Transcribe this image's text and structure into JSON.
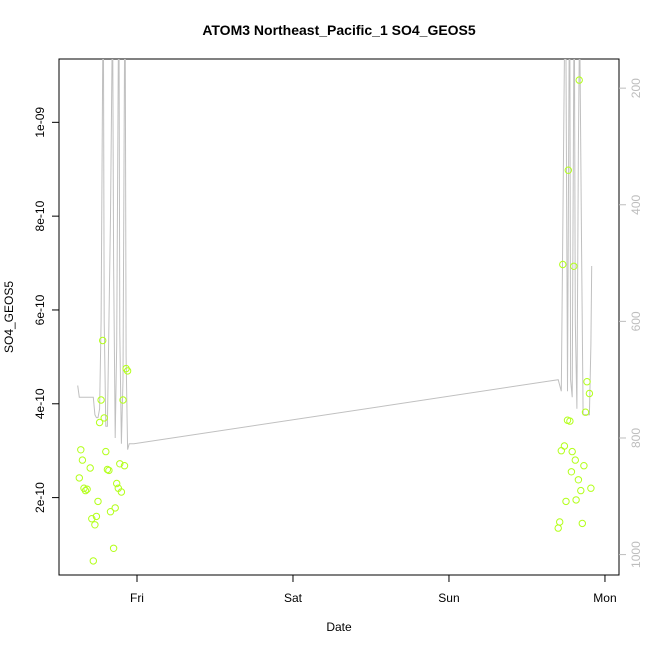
{
  "chart_data": {
    "type": "scatter",
    "title": "ATOM3 Northeast_Pacific_1 SO4_GEOS5",
    "xlabel": "Date",
    "ylabel": "SO4_GEOS5",
    "x_ticks": [
      {
        "label": "Fri",
        "value": 0
      },
      {
        "label": "Sat",
        "value": 1
      },
      {
        "label": "Sun",
        "value": 2
      },
      {
        "label": "Mon",
        "value": 3
      }
    ],
    "xlim": [
      -0.5,
      3.09
    ],
    "ylim": [
      3.5e-11,
      1.135e-09
    ],
    "y_ticks": [
      {
        "label": "2e-10",
        "value": 2e-10
      },
      {
        "label": "4e-10",
        "value": 4e-10
      },
      {
        "label": "6e-10",
        "value": 6e-10
      },
      {
        "label": "8e-10",
        "value": 8e-10
      },
      {
        "label": "1e-09",
        "value": 1e-09
      }
    ],
    "y2lim": [
      1035,
      150
    ],
    "y2_ticks": [
      {
        "label": "200",
        "value": 200
      },
      {
        "label": "400",
        "value": 400
      },
      {
        "label": "600",
        "value": 600
      },
      {
        "label": "800",
        "value": 800
      },
      {
        "label": "1000",
        "value": 1000
      }
    ],
    "colors": {
      "points": "#b3ff1a",
      "pressure_line": "#c0c0c0",
      "axis": "#000000",
      "right_axis": "#bdbdbd"
    },
    "series": [
      {
        "values": [
          {
            "x": -0.37,
            "y": 2.42e-10
          },
          {
            "x": -0.36,
            "y": 3.02e-10
          },
          {
            "x": -0.35,
            "y": 2.8e-10
          },
          {
            "x": -0.34,
            "y": 2.2e-10
          },
          {
            "x": -0.33,
            "y": 2.15e-10
          },
          {
            "x": -0.32,
            "y": 2.18e-10
          },
          {
            "x": -0.3,
            "y": 2.63e-10
          },
          {
            "x": -0.29,
            "y": 1.55e-10
          },
          {
            "x": -0.28,
            "y": 6.5e-11
          },
          {
            "x": -0.27,
            "y": 1.42e-10
          },
          {
            "x": -0.26,
            "y": 1.6e-10
          },
          {
            "x": -0.25,
            "y": 1.92e-10
          },
          {
            "x": -0.24,
            "y": 3.6e-10
          },
          {
            "x": -0.23,
            "y": 4.08e-10
          },
          {
            "x": -0.22,
            "y": 5.35e-10
          },
          {
            "x": -0.21,
            "y": 3.7e-10
          },
          {
            "x": -0.2,
            "y": 2.98e-10
          },
          {
            "x": -0.19,
            "y": 2.6e-10
          },
          {
            "x": -0.18,
            "y": 2.58e-10
          },
          {
            "x": -0.17,
            "y": 1.7e-10
          },
          {
            "x": -0.15,
            "y": 9.2e-11
          },
          {
            "x": -0.14,
            "y": 1.78e-10
          },
          {
            "x": -0.13,
            "y": 2.3e-10
          },
          {
            "x": -0.12,
            "y": 2.2e-10
          },
          {
            "x": -0.11,
            "y": 2.72e-10
          },
          {
            "x": -0.1,
            "y": 2.12e-10
          },
          {
            "x": -0.09,
            "y": 4.08e-10
          },
          {
            "x": -0.08,
            "y": 2.68e-10
          },
          {
            "x": -0.07,
            "y": 4.75e-10
          },
          {
            "x": -0.06,
            "y": 4.7e-10
          },
          {
            "x": 2.7,
            "y": 1.35e-10
          },
          {
            "x": 2.71,
            "y": 1.48e-10
          },
          {
            "x": 2.72,
            "y": 3e-10
          },
          {
            "x": 2.73,
            "y": 6.97e-10
          },
          {
            "x": 2.74,
            "y": 3.1e-10
          },
          {
            "x": 2.75,
            "y": 1.92e-10
          },
          {
            "x": 2.76,
            "y": 3.65e-10
          },
          {
            "x": 2.765,
            "y": 8.98e-10
          },
          {
            "x": 2.775,
            "y": 3.63e-10
          },
          {
            "x": 2.785,
            "y": 2.55e-10
          },
          {
            "x": 2.79,
            "y": 2.98e-10
          },
          {
            "x": 2.8,
            "y": 6.93e-10
          },
          {
            "x": 2.81,
            "y": 2.8e-10
          },
          {
            "x": 2.815,
            "y": 1.95e-10
          },
          {
            "x": 2.83,
            "y": 2.38e-10
          },
          {
            "x": 2.835,
            "y": 1.09e-09
          },
          {
            "x": 2.845,
            "y": 2.15e-10
          },
          {
            "x": 2.855,
            "y": 1.45e-10
          },
          {
            "x": 2.865,
            "y": 2.68e-10
          },
          {
            "x": 2.875,
            "y": 3.82e-10
          },
          {
            "x": 2.885,
            "y": 4.47e-10
          },
          {
            "x": 2.9,
            "y": 4.22e-10
          },
          {
            "x": 2.91,
            "y": 2.2e-10
          }
        ]
      },
      {
        "axis": "right",
        "values": [
          {
            "x": -0.38,
            "y": 710
          },
          {
            "x": -0.37,
            "y": 730
          },
          {
            "x": -0.32,
            "y": 730
          },
          {
            "x": -0.28,
            "y": 730
          },
          {
            "x": -0.27,
            "y": 760
          },
          {
            "x": -0.26,
            "y": 765
          },
          {
            "x": -0.25,
            "y": 765
          },
          {
            "x": -0.24,
            "y": 750
          },
          {
            "x": -0.23,
            "y": 600
          },
          {
            "x": -0.22,
            "y": 150
          },
          {
            "x": -0.215,
            "y": 150
          },
          {
            "x": -0.21,
            "y": 600
          },
          {
            "x": -0.2,
            "y": 780
          },
          {
            "x": -0.19,
            "y": 780
          },
          {
            "x": -0.17,
            "y": 420
          },
          {
            "x": -0.16,
            "y": 150
          },
          {
            "x": -0.155,
            "y": 150
          },
          {
            "x": -0.15,
            "y": 500
          },
          {
            "x": -0.14,
            "y": 800
          },
          {
            "x": -0.13,
            "y": 640
          },
          {
            "x": -0.12,
            "y": 150
          },
          {
            "x": -0.115,
            "y": 150
          },
          {
            "x": -0.11,
            "y": 620
          },
          {
            "x": -0.1,
            "y": 810
          },
          {
            "x": -0.09,
            "y": 700
          },
          {
            "x": -0.08,
            "y": 150
          },
          {
            "x": -0.075,
            "y": 150
          },
          {
            "x": -0.07,
            "y": 660
          },
          {
            "x": -0.06,
            "y": 820
          },
          {
            "x": -0.05,
            "y": 810
          },
          {
            "x": -0.02,
            "y": 810
          },
          {
            "x": 2.7,
            "y": 700
          },
          {
            "x": 2.72,
            "y": 720
          },
          {
            "x": 2.74,
            "y": 150
          },
          {
            "x": 2.75,
            "y": 150
          },
          {
            "x": 2.76,
            "y": 720
          },
          {
            "x": 2.77,
            "y": 150
          },
          {
            "x": 2.775,
            "y": 150
          },
          {
            "x": 2.78,
            "y": 700
          },
          {
            "x": 2.79,
            "y": 730
          },
          {
            "x": 2.8,
            "y": 150
          },
          {
            "x": 2.805,
            "y": 150
          },
          {
            "x": 2.81,
            "y": 600
          },
          {
            "x": 2.82,
            "y": 750
          },
          {
            "x": 2.83,
            "y": 300
          },
          {
            "x": 2.835,
            "y": 150
          },
          {
            "x": 2.84,
            "y": 150
          },
          {
            "x": 2.85,
            "y": 480
          },
          {
            "x": 2.86,
            "y": 760
          },
          {
            "x": 2.875,
            "y": 760
          },
          {
            "x": 2.9,
            "y": 760
          },
          {
            "x": 2.91,
            "y": 640
          },
          {
            "x": 2.915,
            "y": 505
          }
        ]
      }
    ]
  }
}
